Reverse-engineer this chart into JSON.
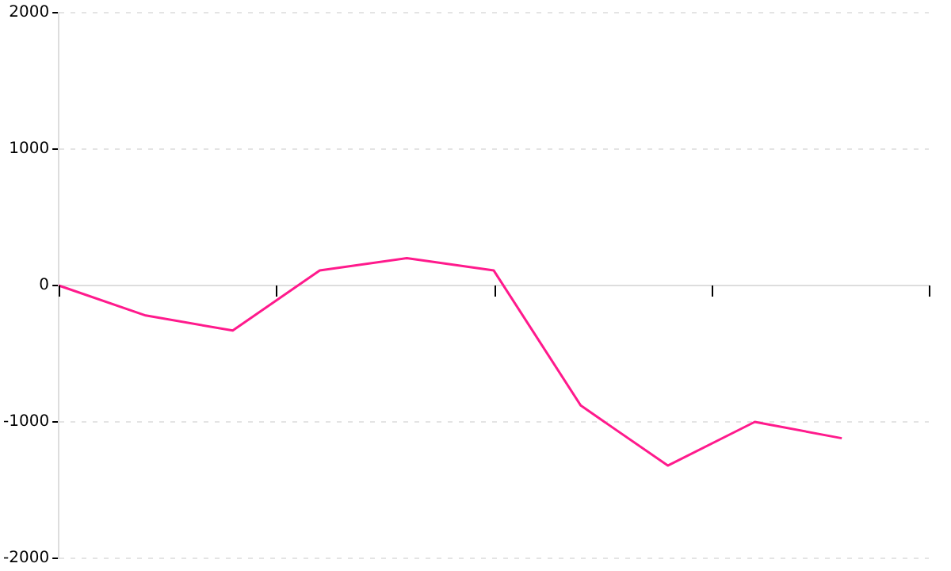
{
  "chart_data": {
    "type": "line",
    "categories": [
      null,
      null,
      null,
      null,
      null,
      null,
      null,
      null,
      null,
      null,
      null
    ],
    "series": [
      {
        "color": "#ff1a8c",
        "values": [
          0,
          -220,
          -330,
          110,
          200,
          110,
          -880,
          -1320,
          -1000,
          -1120,
          null
        ]
      }
    ],
    "ylim": [
      -2000,
      2000
    ],
    "yticks": [
      -2000,
      -1000,
      0,
      1000,
      2000
    ],
    "grid": "y",
    "marker": "none",
    "line_style": "solid",
    "legend": false
  }
}
